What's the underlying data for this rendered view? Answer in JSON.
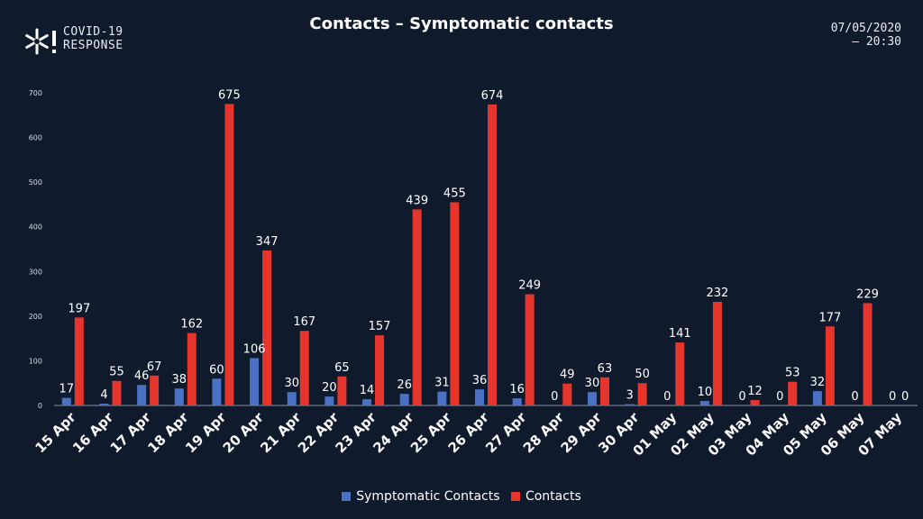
{
  "branding": {
    "line1": "COVID-19",
    "line2": "RESPONSE",
    "logo_icon": "snowflake-exclamation-icon"
  },
  "header": {
    "date": "07/05/2020",
    "time": "— 20:30"
  },
  "chart_data": {
    "type": "bar",
    "title": "Contacts – Symptomatic contacts",
    "xlabel": "",
    "ylabel": "",
    "ylim": [
      0,
      700
    ],
    "yticks": [
      0,
      100,
      200,
      300,
      400,
      500,
      600,
      700
    ],
    "grid": false,
    "legend": "bottom",
    "categories": [
      "15 Apr",
      "16 Apr",
      "17 Apr",
      "18 Apr",
      "19 Apr",
      "20 Apr",
      "21 Apr",
      "22 Apr",
      "23 Apr",
      "24 Apr",
      "25 Apr",
      "26 Apr",
      "27 Apr",
      "28 Apr",
      "29 Apr",
      "30 Apr",
      "01 May",
      "02 May",
      "03 May",
      "04 May",
      "05 May",
      "06 May",
      "07 May"
    ],
    "series": [
      {
        "name": "Symptomatic Contacts",
        "color": "#4a72c4",
        "values": [
          17,
          4,
          46,
          38,
          60,
          106,
          30,
          20,
          14,
          26,
          31,
          36,
          16,
          0,
          30,
          3,
          0,
          10,
          0,
          0,
          32,
          0,
          0
        ]
      },
      {
        "name": "Contacts",
        "color": "#e5352d",
        "values": [
          197,
          55,
          67,
          162,
          675,
          347,
          167,
          65,
          157,
          439,
          455,
          674,
          249,
          49,
          63,
          50,
          141,
          232,
          12,
          53,
          177,
          229,
          0
        ]
      }
    ]
  }
}
